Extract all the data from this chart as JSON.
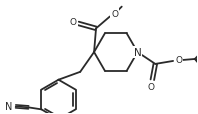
{
  "bg_color": "#ffffff",
  "line_color": "#2a2a2a",
  "line_width": 1.3,
  "figsize": [
    1.98,
    1.15
  ],
  "dpi": 100,
  "xlim": [
    0,
    198
  ],
  "ylim": [
    0,
    115
  ]
}
